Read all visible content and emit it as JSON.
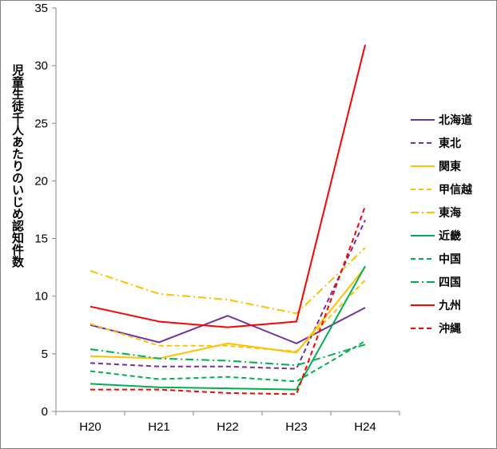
{
  "chart_data": {
    "type": "line",
    "title": "",
    "xlabel": "",
    "ylabel": "児童生徒千人あたりのいじめ認知件数",
    "categories": [
      "H20",
      "H21",
      "H22",
      "H23",
      "H24"
    ],
    "ylim": [
      0,
      35
    ],
    "yticks": [
      0,
      5,
      10,
      15,
      20,
      25,
      30,
      35
    ],
    "legend_position": "right",
    "grid": false,
    "series": [
      {
        "name": "北海道",
        "values": [
          7.5,
          6.0,
          8.3,
          5.9,
          9.0
        ],
        "color": "#7030a0",
        "dash": "solid"
      },
      {
        "name": "東北",
        "values": [
          4.2,
          3.9,
          3.9,
          3.7,
          16.6
        ],
        "color": "#7030a0",
        "dash": "dashed"
      },
      {
        "name": "関東",
        "values": [
          4.8,
          4.6,
          5.9,
          5.1,
          12.5
        ],
        "color": "#ffc000",
        "dash": "solid"
      },
      {
        "name": "甲信越",
        "values": [
          7.6,
          5.7,
          5.7,
          5.2,
          11.4
        ],
        "color": "#ffc000",
        "dash": "dashed"
      },
      {
        "name": "東海",
        "values": [
          12.2,
          10.2,
          9.7,
          8.5,
          14.2
        ],
        "color": "#ffc000",
        "dash": "dashdot"
      },
      {
        "name": "近畿",
        "values": [
          2.4,
          2.1,
          2.0,
          1.9,
          12.6
        ],
        "color": "#00b050",
        "dash": "solid"
      },
      {
        "name": "中国",
        "values": [
          3.5,
          2.8,
          3.0,
          2.6,
          6.1
        ],
        "color": "#00b050",
        "dash": "dashed"
      },
      {
        "name": "四国",
        "values": [
          5.4,
          4.6,
          4.4,
          4.0,
          5.8
        ],
        "color": "#00b050",
        "dash": "dashdot"
      },
      {
        "name": "九州",
        "values": [
          9.1,
          7.8,
          7.3,
          7.8,
          31.8
        ],
        "color": "#ff0000",
        "dash": "solid"
      },
      {
        "name": "沖縄",
        "values": [
          1.9,
          1.9,
          1.6,
          1.5,
          17.8
        ],
        "color": "#ff0000",
        "dash": "dashed"
      }
    ]
  }
}
